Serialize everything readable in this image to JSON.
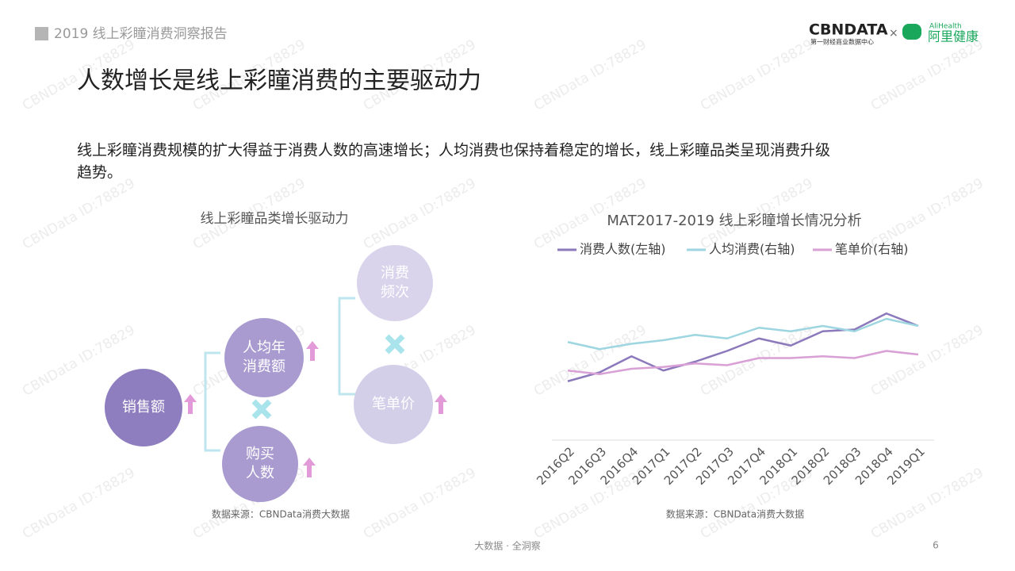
{
  "header": {
    "report": "2019 线上彩瞳消费洞察报告",
    "logo_cbn": "CBNDATA",
    "logo_cbn_sub": "第一财经商业数据中心",
    "logo_times": "×",
    "logo_ali_en": "AliHealth",
    "logo_ali": "阿里健康"
  },
  "title": "人数增长是线上彩瞳消费的主要驱动力",
  "subtitle_lines": [
    "线上彩瞳消费规模的扩大得益于消费人数的高速增长；人均消费也保持着稳定的增长，线上彩瞳品类呈现消费升级",
    "趋势。"
  ],
  "watermark": "CBNData ID:78829",
  "diagram": {
    "title": "线上彩瞳品类增长驱动力",
    "nodes": [
      {
        "label": [
          "销售额"
        ]
      },
      {
        "label": [
          "人均年",
          "消费额"
        ]
      },
      {
        "label": [
          "购买",
          "人数"
        ]
      },
      {
        "label": [
          "消费",
          "频次"
        ]
      },
      {
        "label": [
          "笔单价"
        ]
      }
    ],
    "source": "数据来源：CBNData消费大数据"
  },
  "chart_data": {
    "type": "line",
    "title": "MAT2017-2019 线上彩瞳增长情况分析",
    "categories": [
      "2016Q2",
      "2016Q3",
      "2016Q4",
      "2017Q1",
      "2017Q2",
      "2017Q3",
      "2017Q4",
      "2018Q1",
      "2018Q2",
      "2018Q3",
      "2018Q4",
      "2019Q1"
    ],
    "series": [
      {
        "name": "消费人数(左轴)",
        "color": "#8b79bb",
        "values": [
          33,
          38,
          47,
          39,
          44,
          50,
          57,
          53,
          61,
          62,
          71,
          64
        ]
      },
      {
        "name": "人均消费(右轴)",
        "color": "#9dd6e0",
        "axis": "y2",
        "values": [
          55,
          51,
          54,
          56,
          59,
          57,
          63,
          61,
          64,
          61,
          68,
          64
        ]
      },
      {
        "name": "笔单价(右轴)",
        "color": "#d9a0d6",
        "axis": "y2",
        "values": [
          39,
          37,
          40,
          41,
          43,
          42,
          46,
          46,
          47,
          46,
          50,
          48
        ]
      }
    ],
    "ylim": [
      0,
      100
    ],
    "y2lim": [
      0,
      100
    ],
    "legend": "top",
    "source": "数据来源：CBNData消费大数据"
  },
  "footer": {
    "slogan": "大数据 · 全洞察",
    "page": "6"
  }
}
